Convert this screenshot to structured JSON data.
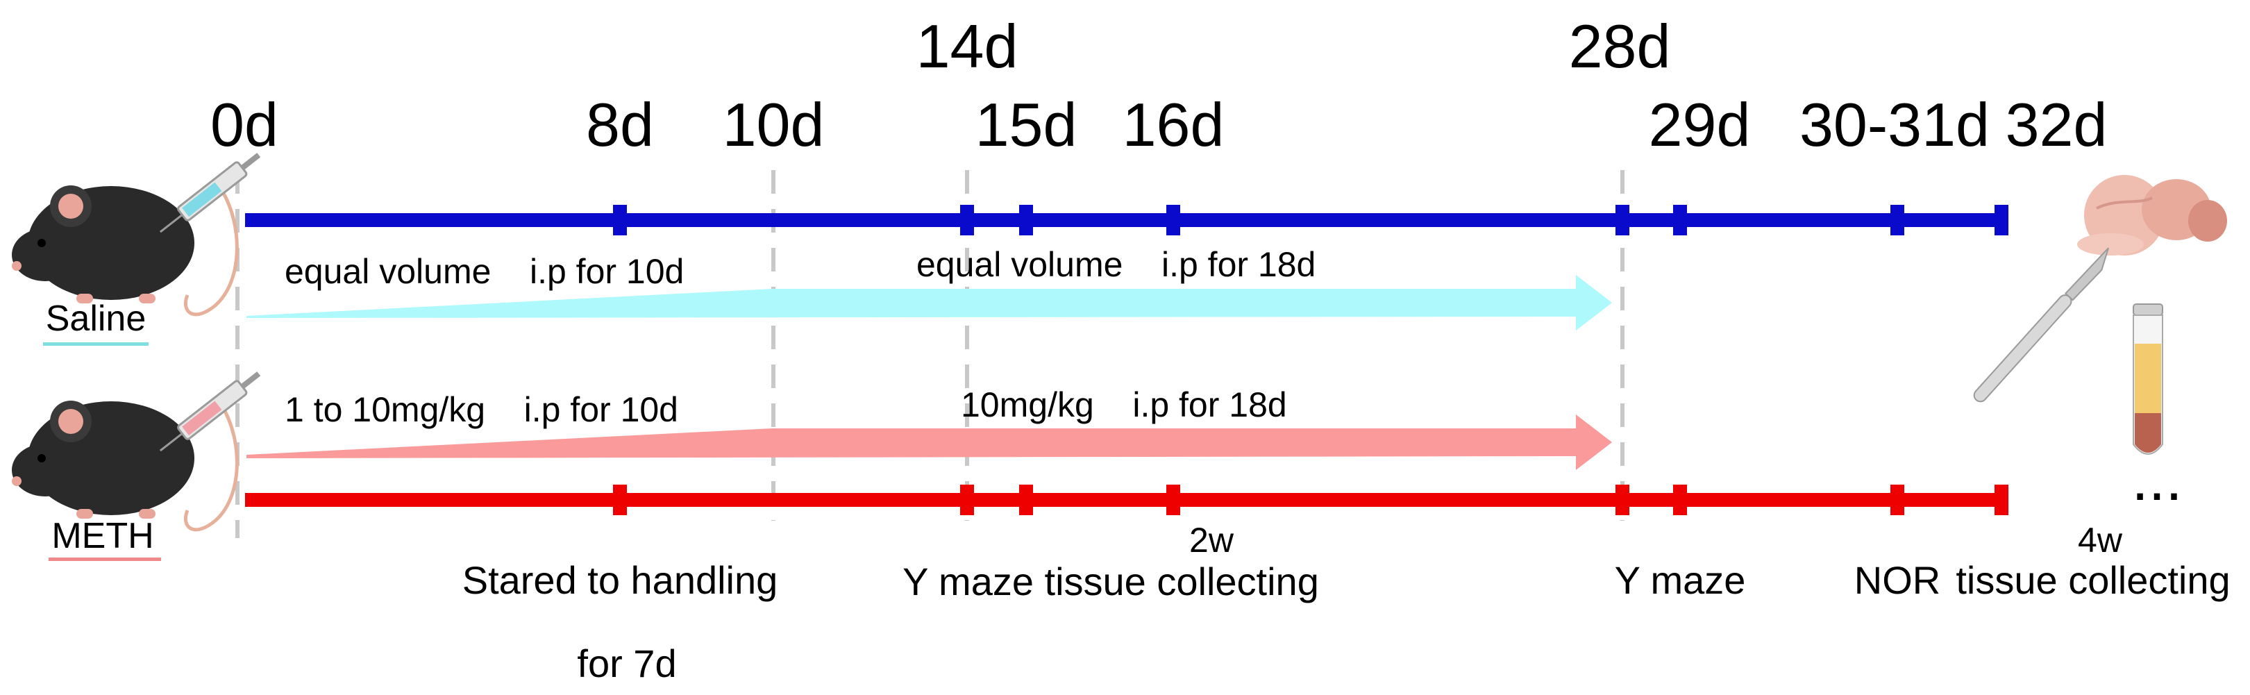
{
  "timeline": {
    "days": [
      {
        "label": "0d",
        "day": 0
      },
      {
        "label": "8d",
        "day": 8
      },
      {
        "label": "10d",
        "day": 10
      },
      {
        "label": "14d",
        "day": 14
      },
      {
        "label": "15d",
        "day": 15
      },
      {
        "label": "16d",
        "day": 16
      },
      {
        "label": "28d",
        "day": 28
      },
      {
        "label": "29d",
        "day": 29
      },
      {
        "label": "30-31d",
        "day": 31
      },
      {
        "label": "32d",
        "day": 32
      }
    ]
  },
  "groups": {
    "saline": {
      "name": "Saline",
      "underline_color": "#7fdede",
      "line_color": "#0a0acc",
      "arrow_color": "#aef9fb",
      "phase1": "equal volume    i.p for 10d",
      "phase2": "equal volume    i.p for 18d"
    },
    "meth": {
      "name": "METH",
      "underline_color": "#f08a8a",
      "line_color": "#ee0000",
      "arrow_color": "#fb9a9a",
      "phase1": "1 to 10mg/kg    i.p for 10d",
      "phase2": "10mg/kg    i.p for 18d"
    }
  },
  "events": {
    "handling_line1": "Stared to handling",
    "handling_line2": "for 7d",
    "two_weeks": "2w",
    "ymaze_tissue": "Y maze tissue collecting",
    "ymaze": "Y maze",
    "nor": "NOR",
    "four_weeks": "4w",
    "tissue": "tissue collecting",
    "ellipsis": "..."
  },
  "icons": {
    "mouse": "mouse-icon",
    "syringe": "syringe-icon",
    "brain": "brain-icon",
    "scalpel": "scalpel-icon",
    "blood_tube": "blood-tube-icon"
  }
}
